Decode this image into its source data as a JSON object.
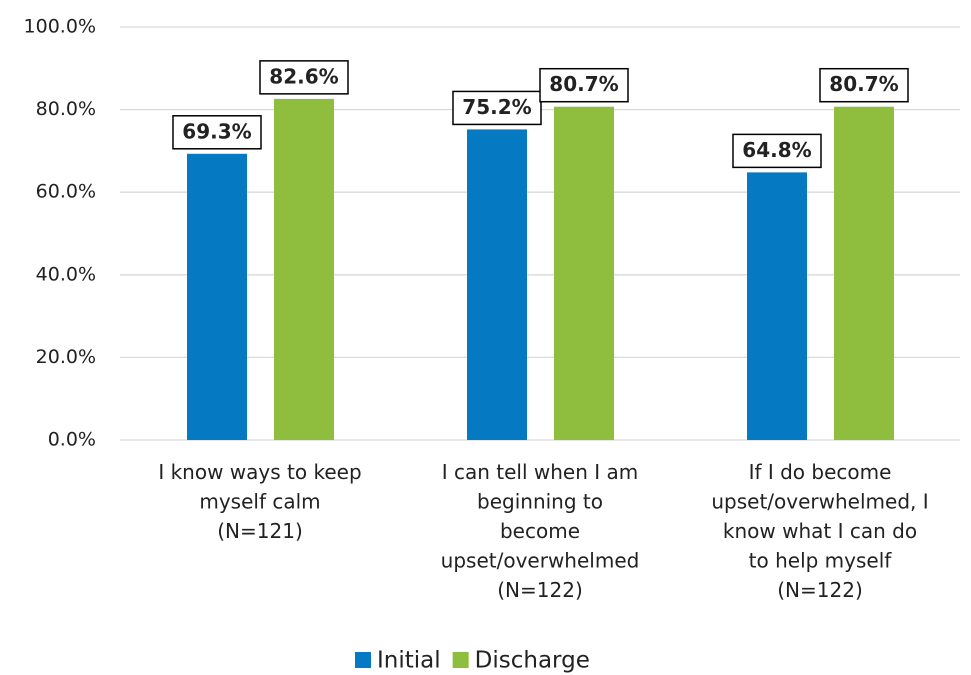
{
  "chart_data": {
    "type": "bar",
    "categories": [
      [
        "I know ways to keep",
        "myself calm",
        "(N=121)"
      ],
      [
        "I can tell when I am",
        "beginning to",
        "become",
        "upset/overwhelmed",
        "(N=122)"
      ],
      [
        "If I do become",
        "upset/overwhelmed, I",
        "know what I can do",
        "to help myself",
        "(N=122)"
      ]
    ],
    "series": [
      {
        "name": "Initial",
        "color": "#0579c1",
        "values": [
          69.3,
          75.2,
          64.8
        ],
        "value_labels": [
          "69.3%",
          "75.2%",
          "64.8%"
        ]
      },
      {
        "name": "Discharge",
        "color": "#8fbe3f",
        "values": [
          82.6,
          80.7,
          80.7
        ],
        "value_labels": [
          "82.6%",
          "80.7%",
          "80.7%"
        ]
      }
    ],
    "ylim": [
      0,
      100
    ],
    "yticks": [
      {
        "value": 0,
        "label": "0.0%"
      },
      {
        "value": 20,
        "label": "20.0%"
      },
      {
        "value": 40,
        "label": "40.0%"
      },
      {
        "value": 60,
        "label": "60.0%"
      },
      {
        "value": 80,
        "label": "80.0%"
      },
      {
        "value": 100,
        "label": "100.0%"
      }
    ],
    "grid": true,
    "legend": "bottom"
  }
}
